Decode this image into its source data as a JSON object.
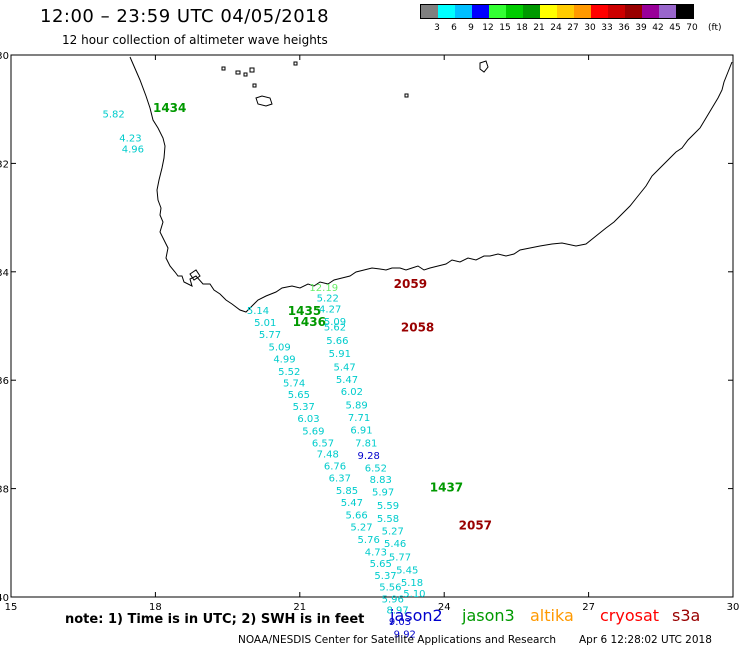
{
  "title": "12:00 – 23:59 UTC 04/05/2018",
  "subtitle": "12 hour collection of altimeter wave heights",
  "color_scale": {
    "colors": [
      "#808080",
      "#00ffff",
      "#00bfff",
      "#0000ff",
      "#33ff33",
      "#00cc00",
      "#009900",
      "#ffff00",
      "#ffcc00",
      "#ff9900",
      "#ff0000",
      "#cc0000",
      "#990000",
      "#990099",
      "#9966cc",
      "#000000"
    ],
    "labels": [
      "3",
      "6",
      "9",
      "12",
      "15",
      "18",
      "21",
      "24",
      "27",
      "30",
      "33",
      "36",
      "39",
      "42",
      "45",
      "70"
    ],
    "unit": "(ft)"
  },
  "axes": {
    "x_ticks": [
      "15",
      "18",
      "21",
      "24",
      "27",
      "30"
    ],
    "y_ticks": [
      "-30",
      "-32",
      "-34",
      "-36",
      "-38",
      "-40"
    ]
  },
  "labels": {
    "pass_ids": [
      {
        "text": "1434",
        "lon": 17.95,
        "lat": -31.05,
        "color": "#009900"
      },
      {
        "text": "2059",
        "lon": 22.95,
        "lat": -34.3,
        "color": "#990000"
      },
      {
        "text": "1435",
        "lon": 20.75,
        "lat": -34.8,
        "color": "#009900"
      },
      {
        "text": "1436",
        "lon": 20.85,
        "lat": -35.0,
        "color": "#009900"
      },
      {
        "text": "2058",
        "lon": 23.1,
        "lat": -35.1,
        "color": "#990000"
      },
      {
        "text": "1437",
        "lon": 23.7,
        "lat": -38.05,
        "color": "#009900"
      },
      {
        "text": "2057",
        "lon": 24.3,
        "lat": -38.75,
        "color": "#990000"
      }
    ],
    "wave_heights": [
      {
        "text": "5.82",
        "lon": 16.9,
        "lat": -31.15,
        "color": "#00cccc"
      },
      {
        "text": "4.23",
        "lon": 17.25,
        "lat": -31.6,
        "color": "#00cccc"
      },
      {
        "text": "4.96",
        "lon": 17.3,
        "lat": -31.8,
        "color": "#00cccc"
      },
      {
        "text": "12.19",
        "lon": 21.2,
        "lat": -34.35,
        "color": "#66ee66"
      },
      {
        "text": "5.22",
        "lon": 21.35,
        "lat": -34.55,
        "color": "#00cccc"
      },
      {
        "text": "4.27",
        "lon": 21.4,
        "lat": -34.75,
        "color": "#00cccc"
      },
      {
        "text": "5.09",
        "lon": 21.5,
        "lat": -34.98,
        "color": "#00cccc"
      },
      {
        "text": "5.62",
        "lon": 21.5,
        "lat": -35.08,
        "color": "#00cccc"
      },
      {
        "text": "5.66",
        "lon": 21.55,
        "lat": -35.33,
        "color": "#00cccc"
      },
      {
        "text": "5.91",
        "lon": 21.6,
        "lat": -35.57,
        "color": "#00cccc"
      },
      {
        "text": "5.47",
        "lon": 21.7,
        "lat": -35.82,
        "color": "#00cccc"
      },
      {
        "text": "5.47",
        "lon": 21.75,
        "lat": -36.05,
        "color": "#00cccc"
      },
      {
        "text": "6.02",
        "lon": 21.85,
        "lat": -36.27,
        "color": "#00cccc"
      },
      {
        "text": "5.89",
        "lon": 21.95,
        "lat": -36.52,
        "color": "#00cccc"
      },
      {
        "text": "7.71",
        "lon": 22.0,
        "lat": -36.75,
        "color": "#00cccc"
      },
      {
        "text": "6.91",
        "lon": 22.05,
        "lat": -36.98,
        "color": "#00cccc"
      },
      {
        "text": "7.81",
        "lon": 22.15,
        "lat": -37.22,
        "color": "#00cccc"
      },
      {
        "text": "9.28",
        "lon": 22.2,
        "lat": -37.45,
        "color": "#0000cc"
      },
      {
        "text": "6.52",
        "lon": 22.35,
        "lat": -37.68,
        "color": "#00cccc"
      },
      {
        "text": "8.83",
        "lon": 22.45,
        "lat": -37.9,
        "color": "#00cccc"
      },
      {
        "text": "5.97",
        "lon": 22.5,
        "lat": -38.13,
        "color": "#00cccc"
      },
      {
        "text": "5.59",
        "lon": 22.6,
        "lat": -38.38,
        "color": "#00cccc"
      },
      {
        "text": "5.58",
        "lon": 22.6,
        "lat": -38.62,
        "color": "#00cccc"
      },
      {
        "text": "5.27",
        "lon": 22.7,
        "lat": -38.85,
        "color": "#00cccc"
      },
      {
        "text": "5.46",
        "lon": 22.75,
        "lat": -39.08,
        "color": "#00cccc"
      },
      {
        "text": "5.77",
        "lon": 22.85,
        "lat": -39.33,
        "color": "#00cccc"
      },
      {
        "text": "5.45",
        "lon": 23.0,
        "lat": -39.57,
        "color": "#00cccc"
      },
      {
        "text": "5.18",
        "lon": 23.1,
        "lat": -39.8,
        "color": "#00cccc"
      },
      {
        "text": "5.10",
        "lon": 23.15,
        "lat": -40.0,
        "color": "#00cccc"
      },
      {
        "text": "5.14",
        "lon": 19.9,
        "lat": -34.78,
        "color": "#00cccc"
      },
      {
        "text": "5.01",
        "lon": 20.05,
        "lat": -35.0,
        "color": "#00cccc"
      },
      {
        "text": "5.77",
        "lon": 20.15,
        "lat": -35.22,
        "color": "#00cccc"
      },
      {
        "text": "5.09",
        "lon": 20.35,
        "lat": -35.45,
        "color": "#00cccc"
      },
      {
        "text": "4.99",
        "lon": 20.45,
        "lat": -35.67,
        "color": "#00cccc"
      },
      {
        "text": "5.52",
        "lon": 20.55,
        "lat": -35.9,
        "color": "#00cccc"
      },
      {
        "text": "5.74",
        "lon": 20.65,
        "lat": -36.12,
        "color": "#00cccc"
      },
      {
        "text": "5.65",
        "lon": 20.75,
        "lat": -36.33,
        "color": "#00cccc"
      },
      {
        "text": "5.37",
        "lon": 20.85,
        "lat": -36.55,
        "color": "#00cccc"
      },
      {
        "text": "6.03",
        "lon": 20.95,
        "lat": -36.77,
        "color": "#00cccc"
      },
      {
        "text": "5.69",
        "lon": 21.05,
        "lat": -37.0,
        "color": "#00cccc"
      },
      {
        "text": "6.57",
        "lon": 21.25,
        "lat": -37.22,
        "color": "#00cccc"
      },
      {
        "text": "7.48",
        "lon": 21.35,
        "lat": -37.43,
        "color": "#00cccc"
      },
      {
        "text": "6.76",
        "lon": 21.5,
        "lat": -37.65,
        "color": "#00cccc"
      },
      {
        "text": "6.37",
        "lon": 21.6,
        "lat": -37.87,
        "color": "#00cccc"
      },
      {
        "text": "5.85",
        "lon": 21.75,
        "lat": -38.1,
        "color": "#00cccc"
      },
      {
        "text": "5.47",
        "lon": 21.85,
        "lat": -38.32,
        "color": "#00cccc"
      },
      {
        "text": "5.66",
        "lon": 21.95,
        "lat": -38.55,
        "color": "#00cccc"
      },
      {
        "text": "5.27",
        "lon": 22.05,
        "lat": -38.77,
        "color": "#00cccc"
      },
      {
        "text": "5.76",
        "lon": 22.2,
        "lat": -39.0,
        "color": "#00cccc"
      },
      {
        "text": "4.73",
        "lon": 22.35,
        "lat": -39.23,
        "color": "#00cccc"
      },
      {
        "text": "5.65",
        "lon": 22.45,
        "lat": -39.45,
        "color": "#00cccc"
      },
      {
        "text": "5.37",
        "lon": 22.55,
        "lat": -39.67,
        "color": "#00cccc"
      },
      {
        "text": "5.56",
        "lon": 22.65,
        "lat": -39.88,
        "color": "#00cccc"
      },
      {
        "text": "5.96",
        "lon": 22.7,
        "lat": -40.1,
        "color": "#00cccc"
      },
      {
        "text": "8.97",
        "lon": 22.8,
        "lat": -40.3,
        "color": "#00cccc"
      },
      {
        "text": "9.03",
        "lon": 22.85,
        "lat": -40.52,
        "color": "#0000cc"
      },
      {
        "text": "9.92",
        "lon": 22.95,
        "lat": -40.75,
        "color": "#0000cc"
      }
    ]
  },
  "note": "note: 1) Time is in UTC; 2) SWH is in feet",
  "satellites": [
    {
      "name": "jason2",
      "color": "#0000cc"
    },
    {
      "name": "jason3",
      "color": "#009900"
    },
    {
      "name": "altika",
      "color": "#ff9900"
    },
    {
      "name": "cryosat",
      "color": "#ff0000"
    },
    {
      "name": "s3a",
      "color": "#990000"
    }
  ],
  "footer": "NOAA/NESDIS Center for Satellite Applications and Research",
  "footer_date": "Apr  6 12:28:02 UTC 2018"
}
